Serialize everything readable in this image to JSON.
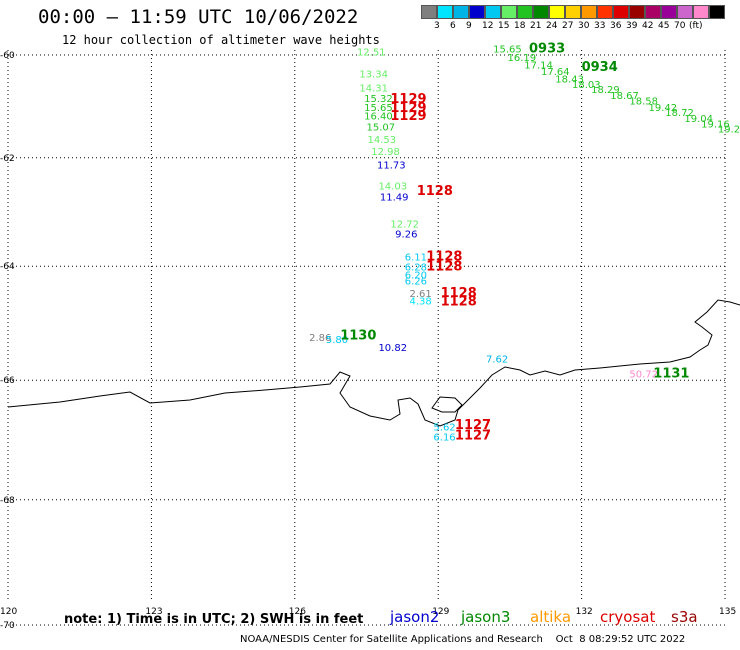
{
  "header": {
    "title": "00:00 – 11:59 UTC 10/06/2022",
    "subtitle": "12 hour collection of altimeter wave heights"
  },
  "legend": {
    "unit": "(ft)",
    "colors": [
      "#7f7f7f",
      "#00e5ff",
      "#00b4e6",
      "#0000cc",
      "#00c8f0",
      "#66ee66",
      "#22c422",
      "#008800",
      "#ffff00",
      "#ffd000",
      "#ff9900",
      "#ff3300",
      "#dd0000",
      "#990000",
      "#aa0066",
      "#990099",
      "#cc66cc",
      "#ff88cc",
      "#000000"
    ],
    "labels": [
      "3",
      "6",
      "9",
      "12",
      "15",
      "18",
      "21",
      "24",
      "27",
      "30",
      "33",
      "36",
      "39",
      "42",
      "45",
      "70"
    ]
  },
  "axes": {
    "x_ticks": [
      "120",
      "123",
      "126",
      "129",
      "132",
      "135"
    ],
    "y_ticks": [
      "-60",
      "-62",
      "-64",
      "-66",
      "-68",
      "-70"
    ]
  },
  "observations": [
    {
      "text": "12.51",
      "color": "#66ee66",
      "lon": 127.3,
      "lat": -60.01
    },
    {
      "text": "13.34",
      "color": "#66ee66",
      "lon": 127.35,
      "lat": -60.45
    },
    {
      "text": "14.31",
      "color": "#66ee66",
      "lon": 127.35,
      "lat": -60.72
    },
    {
      "text": "15.32",
      "color": "#22c422",
      "lon": 127.45,
      "lat": -60.93
    },
    {
      "text": "15.65",
      "color": "#22c422",
      "lon": 127.45,
      "lat": -61.1
    },
    {
      "text": "16.40",
      "color": "#22c422",
      "lon": 127.45,
      "lat": -61.27
    },
    {
      "text": "15.07",
      "color": "#22c422",
      "lon": 127.5,
      "lat": -61.48
    },
    {
      "text": "14.53",
      "color": "#66ee66",
      "lon": 127.52,
      "lat": -61.72
    },
    {
      "text": "12.98",
      "color": "#66ee66",
      "lon": 127.6,
      "lat": -61.95
    },
    {
      "text": "11.73",
      "color": "#0000cc",
      "lon": 127.72,
      "lat": -62.2
    },
    {
      "text": "14.03",
      "color": "#66ee66",
      "lon": 127.75,
      "lat": -62.6
    },
    {
      "text": "11.49",
      "color": "#0000cc",
      "lon": 127.78,
      "lat": -62.8
    },
    {
      "text": "12.72",
      "color": "#66ee66",
      "lon": 128.0,
      "lat": -63.3
    },
    {
      "text": "9.26",
      "color": "#0000cc",
      "lon": 128.1,
      "lat": -63.48
    },
    {
      "text": "6.11",
      "color": "#00c8f0",
      "lon": 128.3,
      "lat": -63.9
    },
    {
      "text": "6.28",
      "color": "#00c8f0",
      "lon": 128.3,
      "lat": -64.08
    },
    {
      "text": "6.20",
      "color": "#00c8f0",
      "lon": 128.3,
      "lat": -64.22
    },
    {
      "text": "6.26",
      "color": "#00c8f0",
      "lon": 128.3,
      "lat": -64.33
    },
    {
      "text": "2.61",
      "color": "#7f7f7f",
      "lon": 128.4,
      "lat": -64.55
    },
    {
      "text": "4.38",
      "color": "#00e5ff",
      "lon": 128.4,
      "lat": -64.68
    },
    {
      "text": "2.86",
      "color": "#7f7f7f",
      "lon": 126.3,
      "lat": -65.32
    },
    {
      "text": "5.80",
      "color": "#00c8f0",
      "lon": 126.65,
      "lat": -65.36
    },
    {
      "text": "10.82",
      "color": "#0000cc",
      "lon": 127.75,
      "lat": -65.5
    },
    {
      "text": "7.62",
      "color": "#00b4e6",
      "lon": 130.0,
      "lat": -65.7
    },
    {
      "text": "50.72",
      "color": "#ff88cc",
      "lon": 133.0,
      "lat": -65.95
    },
    {
      "text": "5.62",
      "color": "#00c8f0",
      "lon": 128.9,
      "lat": -66.85
    },
    {
      "text": "6.16",
      "color": "#00c8f0",
      "lon": 128.9,
      "lat": -67.02
    },
    {
      "text": "15.65",
      "color": "#22c422",
      "lon": 130.15,
      "lat": -59.95
    },
    {
      "text": "16.19",
      "color": "#22c422",
      "lon": 130.45,
      "lat": -60.12
    },
    {
      "text": "17.14",
      "color": "#22c422",
      "lon": 130.8,
      "lat": -60.27
    },
    {
      "text": "17.64",
      "color": "#22c422",
      "lon": 131.15,
      "lat": -60.4
    },
    {
      "text": "18.43",
      "color": "#22c422",
      "lon": 131.45,
      "lat": -60.55
    },
    {
      "text": "18.03",
      "color": "#22c422",
      "lon": 131.8,
      "lat": -60.65
    },
    {
      "text": "18.29",
      "color": "#22c422",
      "lon": 132.2,
      "lat": -60.75
    },
    {
      "text": "18.67",
      "color": "#22c422",
      "lon": 132.6,
      "lat": -60.87
    },
    {
      "text": "18.58",
      "color": "#22c422",
      "lon": 133.0,
      "lat": -60.98
    },
    {
      "text": "19.42",
      "color": "#22c422",
      "lon": 133.4,
      "lat": -61.1
    },
    {
      "text": "18.72",
      "color": "#22c422",
      "lon": 133.75,
      "lat": -61.2
    },
    {
      "text": "19.04",
      "color": "#22c422",
      "lon": 134.15,
      "lat": -61.32
    },
    {
      "text": "19.16",
      "color": "#22c422",
      "lon": 134.5,
      "lat": -61.42
    },
    {
      "text": "19.2",
      "color": "#22c422",
      "lon": 134.85,
      "lat": -61.52
    }
  ],
  "pass_times": [
    {
      "text": "1129",
      "color": "#dd0000",
      "lon": 128.0,
      "lat": -60.95
    },
    {
      "text": "1129",
      "color": "#dd0000",
      "lon": 128.0,
      "lat": -61.12
    },
    {
      "text": "1129",
      "color": "#dd0000",
      "lon": 128.0,
      "lat": -61.28
    },
    {
      "text": "1128",
      "color": "#dd0000",
      "lon": 128.55,
      "lat": -62.7
    },
    {
      "text": "1128",
      "color": "#dd0000",
      "lon": 128.75,
      "lat": -63.9
    },
    {
      "text": "1128",
      "color": "#dd0000",
      "lon": 128.75,
      "lat": -64.08
    },
    {
      "text": "1128",
      "color": "#dd0000",
      "lon": 129.05,
      "lat": -64.55
    },
    {
      "text": "1128",
      "color": "#dd0000",
      "lon": 129.05,
      "lat": -64.7
    },
    {
      "text": "1130",
      "color": "#008800",
      "lon": 126.95,
      "lat": -65.3
    },
    {
      "text": "1131",
      "color": "#008800",
      "lon": 133.5,
      "lat": -65.95
    },
    {
      "text": "1127",
      "color": "#dd0000",
      "lon": 129.35,
      "lat": -66.83
    },
    {
      "text": "1127",
      "color": "#dd0000",
      "lon": 129.35,
      "lat": -67.0
    },
    {
      "text": "0933",
      "color": "#008800",
      "lon": 130.9,
      "lat": -59.95
    },
    {
      "text": "0934",
      "color": "#008800",
      "lon": 132.0,
      "lat": -60.32
    }
  ],
  "footer": {
    "note": "note: 1) Time is in UTC; 2) SWH is in feet",
    "satellites": [
      {
        "name": "jason2",
        "color": "#0000cc"
      },
      {
        "name": "jason3",
        "color": "#008800"
      },
      {
        "name": "altika",
        "color": "#ff9900"
      },
      {
        "name": "cryosat",
        "color": "#dd0000"
      },
      {
        "name": "s3a",
        "color": "#990000"
      }
    ],
    "credits": "NOAA/NESDIS Center for Satellite Applications and Research    Oct  8 08:29:52 UTC 2022"
  }
}
